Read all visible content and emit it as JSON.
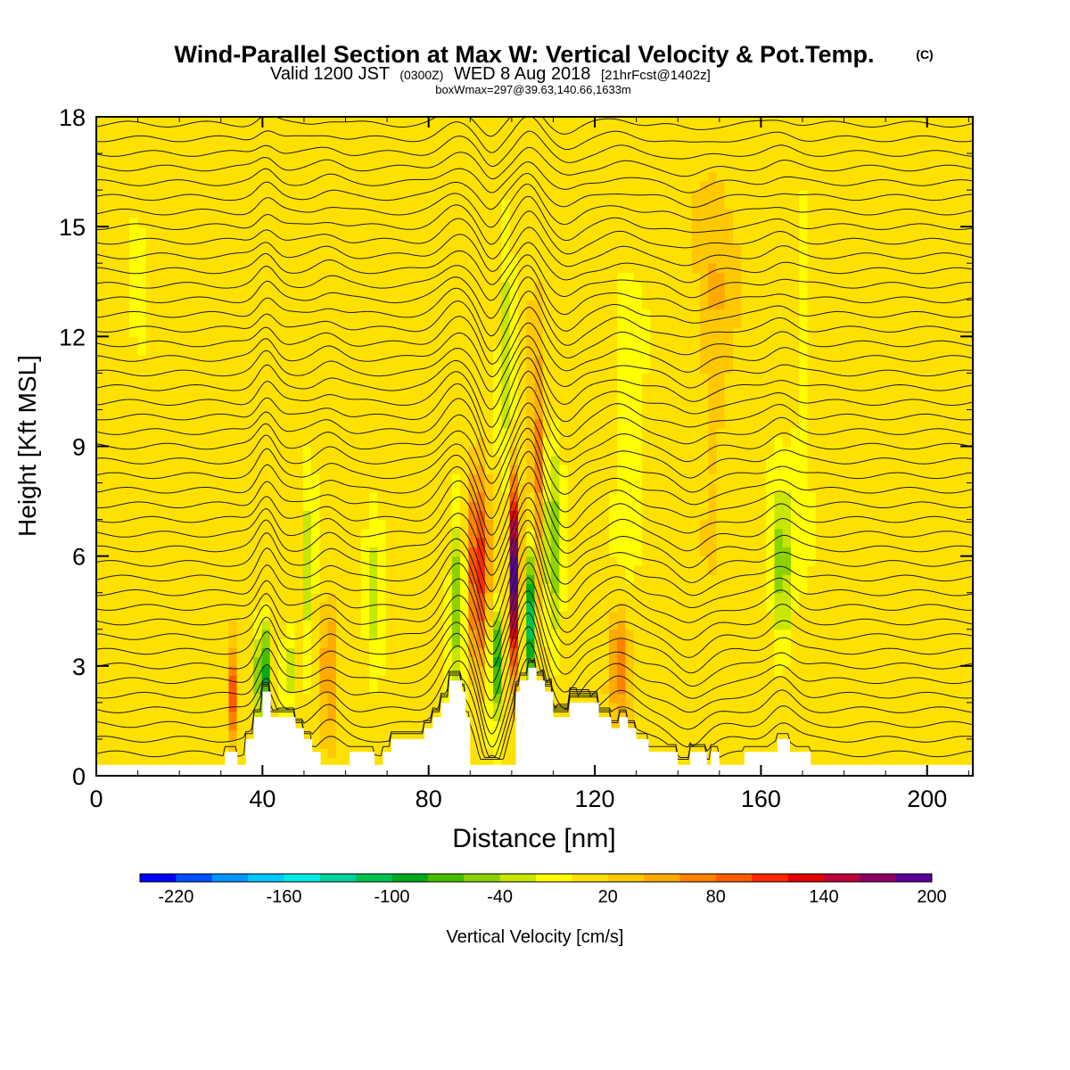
{
  "title": {
    "main": "Wind-Parallel Section at Max W: Vertical Velocity & Pot.Temp.",
    "main_tag": "(C)",
    "valid_prefix": "Valid 1200 JST",
    "valid_utc": "(0300Z)",
    "valid_date": "WED 8 Aug 2018",
    "forecast": "[21hrFcst@1402z]",
    "box": "boxWmax=297@39.63,140.66,1633m"
  },
  "chart_data": {
    "type": "heatmap",
    "xlabel": "Distance [nm]",
    "ylabel": "Height [Kft MSL]",
    "xlim": [
      0,
      211
    ],
    "ylim": [
      0,
      18
    ],
    "x_ticks": [
      0,
      40,
      80,
      120,
      160,
      200
    ],
    "y_ticks": [
      0,
      3,
      6,
      9,
      12,
      15,
      18
    ],
    "background_value": 10,
    "colorbar": {
      "label": "Vertical Velocity [cm/s]",
      "min": -240,
      "step": 20,
      "tick_labels": [
        "-220",
        "-160",
        "-100",
        "-40",
        "20",
        "80",
        "140",
        "200"
      ],
      "tick_values": [
        -220,
        -160,
        -100,
        -40,
        20,
        80,
        140,
        200
      ],
      "colors": [
        "#0000ff",
        "#0050ff",
        "#0096ff",
        "#00c8ff",
        "#00ebe6",
        "#00d2a0",
        "#00c350",
        "#00aa1e",
        "#46be00",
        "#8cd200",
        "#c8e600",
        "#ffff00",
        "#ffe100",
        "#ffc800",
        "#ffaa00",
        "#ff8200",
        "#ff5a00",
        "#ff2800",
        "#e60000",
        "#be003c",
        "#8c0064",
        "#5a0096"
      ]
    },
    "velocity_features": [
      {
        "x": 10,
        "y": 11,
        "sx": 1.8,
        "sy": 4.0,
        "value": -15
      },
      {
        "x": 33,
        "y": 2.2,
        "sx": 1.2,
        "sy": 1.3,
        "value": 90
      },
      {
        "x": 40,
        "y": 2.8,
        "sx": 1.2,
        "sy": 1.5,
        "value": -150
      },
      {
        "x": 46,
        "y": 2.9,
        "sx": 1.2,
        "sy": 1.3,
        "value": -70
      },
      {
        "x": 51,
        "y": 5,
        "sx": 1.5,
        "sy": 3.0,
        "value": -40
      },
      {
        "x": 56,
        "y": 3,
        "sx": 1.5,
        "sy": 2.0,
        "value": 50
      },
      {
        "x": 67,
        "y": 5,
        "sx": 2.0,
        "sy": 3.0,
        "value": -30
      },
      {
        "x": 87,
        "y": 5,
        "sx": 2.0,
        "sy": 2.5,
        "value": -70
      },
      {
        "x": 92,
        "y": 5.7,
        "sx": 2.5,
        "sy": 2.8,
        "value": 95
      },
      {
        "x": 96,
        "y": 3.2,
        "sx": 1.5,
        "sy": 1.5,
        "value": -110
      },
      {
        "x": 101,
        "y": 5.6,
        "sx": 1.2,
        "sy": 2.6,
        "value": 200
      },
      {
        "x": 104,
        "y": 4.2,
        "sx": 1.3,
        "sy": 2.0,
        "value": -150
      },
      {
        "x": 106,
        "y": 8.5,
        "sx": 1.5,
        "sy": 3.0,
        "value": 70
      },
      {
        "x": 99,
        "y": 12,
        "sx": 2.0,
        "sy": 3.0,
        "value": -50
      },
      {
        "x": 110,
        "y": 6,
        "sx": 2.0,
        "sy": 3.0,
        "value": -60
      },
      {
        "x": 126,
        "y": 3.2,
        "sx": 2.5,
        "sy": 1.5,
        "value": 70
      },
      {
        "x": 128,
        "y": 9,
        "sx": 4.0,
        "sy": 3.0,
        "value": -35
      },
      {
        "x": 165,
        "y": 5.5,
        "sx": 2.5,
        "sy": 2.5,
        "value": -60
      },
      {
        "x": 170,
        "y": 10,
        "sx": 2.0,
        "sy": 4.0,
        "value": -25
      },
      {
        "x": 149,
        "y": 12,
        "sx": 4.0,
        "sy": 4.0,
        "value": 30
      }
    ],
    "terrain": [
      {
        "x": 0,
        "h": 0.3
      },
      {
        "x": 31,
        "h": 0.3
      },
      {
        "x": 31,
        "h": 0.65
      },
      {
        "x": 34,
        "h": 0.65
      },
      {
        "x": 34,
        "h": 0.3
      },
      {
        "x": 36,
        "h": 0.3
      },
      {
        "x": 36,
        "h": 1.0
      },
      {
        "x": 38,
        "h": 1.0
      },
      {
        "x": 38,
        "h": 1.6
      },
      {
        "x": 40,
        "h": 1.6
      },
      {
        "x": 40,
        "h": 2.3
      },
      {
        "x": 42,
        "h": 2.3
      },
      {
        "x": 42,
        "h": 1.6
      },
      {
        "x": 48,
        "h": 1.6
      },
      {
        "x": 48,
        "h": 1.3
      },
      {
        "x": 50,
        "h": 1.3
      },
      {
        "x": 50,
        "h": 1.0
      },
      {
        "x": 52,
        "h": 1.0
      },
      {
        "x": 52,
        "h": 0.65
      },
      {
        "x": 54,
        "h": 0.65
      },
      {
        "x": 54,
        "h": 0.3
      },
      {
        "x": 61,
        "h": 0.3
      },
      {
        "x": 61,
        "h": 0.65
      },
      {
        "x": 67,
        "h": 0.65
      },
      {
        "x": 67,
        "h": 0.3
      },
      {
        "x": 69,
        "h": 0.3
      },
      {
        "x": 69,
        "h": 0.65
      },
      {
        "x": 71,
        "h": 0.65
      },
      {
        "x": 71,
        "h": 1.0
      },
      {
        "x": 79,
        "h": 1.0
      },
      {
        "x": 79,
        "h": 1.3
      },
      {
        "x": 81,
        "h": 1.3
      },
      {
        "x": 81,
        "h": 1.6
      },
      {
        "x": 83,
        "h": 1.6
      },
      {
        "x": 83,
        "h": 2.0
      },
      {
        "x": 85,
        "h": 2.0
      },
      {
        "x": 85,
        "h": 2.6
      },
      {
        "x": 88,
        "h": 2.6
      },
      {
        "x": 88,
        "h": 2.3
      },
      {
        "x": 89,
        "h": 2.3
      },
      {
        "x": 89,
        "h": 1.6
      },
      {
        "x": 90,
        "h": 1.6
      },
      {
        "x": 90,
        "h": 0.3
      },
      {
        "x": 101,
        "h": 0.3
      },
      {
        "x": 101,
        "h": 2.3
      },
      {
        "x": 102,
        "h": 2.3
      },
      {
        "x": 102,
        "h": 2.6
      },
      {
        "x": 104,
        "h": 2.6
      },
      {
        "x": 104,
        "h": 2.95
      },
      {
        "x": 106,
        "h": 2.95
      },
      {
        "x": 106,
        "h": 2.6
      },
      {
        "x": 108,
        "h": 2.6
      },
      {
        "x": 108,
        "h": 2.3
      },
      {
        "x": 110,
        "h": 2.3
      },
      {
        "x": 110,
        "h": 1.6
      },
      {
        "x": 114,
        "h": 1.6
      },
      {
        "x": 114,
        "h": 2.0
      },
      {
        "x": 121,
        "h": 2.0
      },
      {
        "x": 121,
        "h": 1.6
      },
      {
        "x": 124,
        "h": 1.6
      },
      {
        "x": 124,
        "h": 1.3
      },
      {
        "x": 126,
        "h": 1.3
      },
      {
        "x": 126,
        "h": 1.6
      },
      {
        "x": 128,
        "h": 1.6
      },
      {
        "x": 128,
        "h": 1.3
      },
      {
        "x": 130,
        "h": 1.3
      },
      {
        "x": 130,
        "h": 1.0
      },
      {
        "x": 133,
        "h": 1.0
      },
      {
        "x": 133,
        "h": 0.65
      },
      {
        "x": 140,
        "h": 0.65
      },
      {
        "x": 140,
        "h": 0.3
      },
      {
        "x": 143,
        "h": 0.3
      },
      {
        "x": 143,
        "h": 0.65
      },
      {
        "x": 147,
        "h": 0.65
      },
      {
        "x": 147,
        "h": 0.3
      },
      {
        "x": 148,
        "h": 0.3
      },
      {
        "x": 148,
        "h": 0.65
      },
      {
        "x": 150,
        "h": 0.65
      },
      {
        "x": 150,
        "h": 0.3
      },
      {
        "x": 156,
        "h": 0.3
      },
      {
        "x": 156,
        "h": 0.65
      },
      {
        "x": 164,
        "h": 0.65
      },
      {
        "x": 164,
        "h": 1.0
      },
      {
        "x": 167,
        "h": 1.0
      },
      {
        "x": 167,
        "h": 0.65
      },
      {
        "x": 172,
        "h": 0.65
      },
      {
        "x": 172,
        "h": 0.3
      },
      {
        "x": 211,
        "h": 0.3
      }
    ],
    "isentropes": {
      "spacing": 0.4,
      "count": 44,
      "ridges": [
        {
          "x": 41,
          "amp": 1.0,
          "w": 3
        },
        {
          "x": 56,
          "amp": 0.5,
          "w": 4
        },
        {
          "x": 87,
          "amp": 1.4,
          "w": 5
        },
        {
          "x": 104,
          "amp": 2.0,
          "w": 4
        },
        {
          "x": 126,
          "amp": 0.5,
          "w": 5
        },
        {
          "x": 165,
          "amp": 0.5,
          "w": 4
        }
      ],
      "troughs": [
        {
          "x": 95,
          "amp": -1.2,
          "w": 3
        },
        {
          "x": 113,
          "amp": -0.8,
          "w": 4
        },
        {
          "x": 143,
          "amp": -0.6,
          "w": 5
        }
      ]
    }
  }
}
